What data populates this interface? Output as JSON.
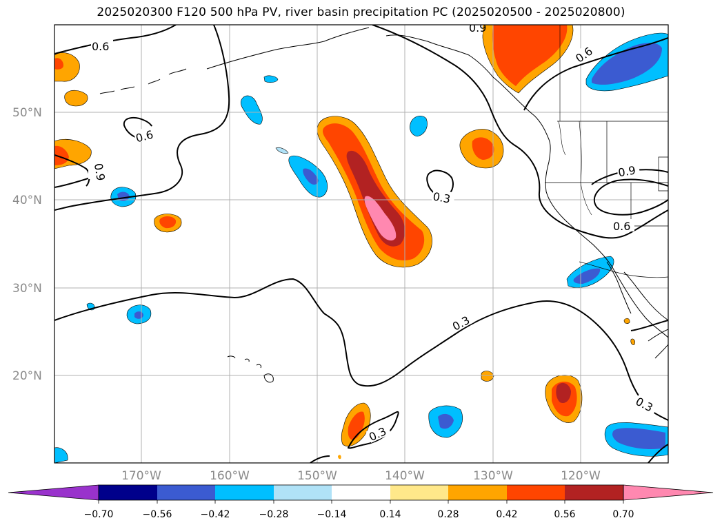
{
  "title": "2025020300 F120 500 hPa PV, river basin precipitation PC (2025020500 - 2025020800)",
  "latitude_labels": [
    "50°N",
    "40°N",
    "30°N",
    "20°N"
  ],
  "longitude_labels": [
    "170°W",
    "160°W",
    "150°W",
    "140°W",
    "130°W",
    "120°W"
  ],
  "contour_labels": [
    "0.6",
    "0.6",
    "0.9",
    "0.6",
    "0.9",
    "0.3",
    "0.9",
    "0.6",
    "0.3",
    "0.3",
    "0.3"
  ],
  "colorbar": {
    "ticks": [
      "−0.70",
      "−0.56",
      "−0.42",
      "−0.28",
      "−0.14",
      "0.14",
      "0.28",
      "0.42",
      "0.56",
      "0.70"
    ],
    "colors": [
      "#9932cc",
      "#00008b",
      "#3b5bd1",
      "#00bfff",
      "#b0e2f7",
      "#ffffff",
      "#ffe88a",
      "#ffa500",
      "#ff4500",
      "#b22222",
      "#ff88b0"
    ]
  },
  "colors": {
    "grid": "#b0b0b0",
    "coastline": "#000000",
    "contour": "#000000"
  }
}
